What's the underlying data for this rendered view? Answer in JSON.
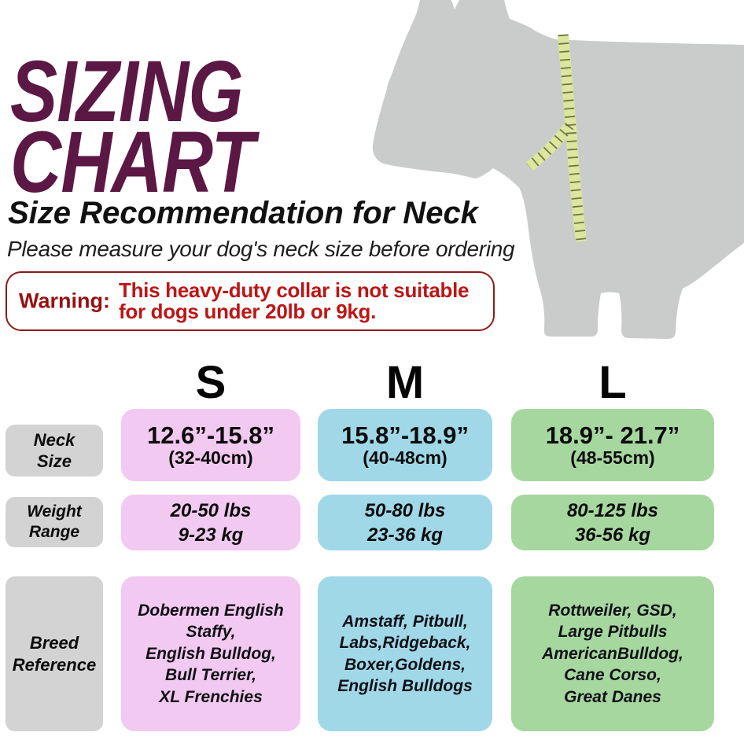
{
  "colors": {
    "title": "#5c1844",
    "text": "#141414",
    "warning-border": "#8f1a1a",
    "warning-label": "#951212",
    "warning-text": "#bc1616",
    "cell-pink": "#f2c9f0",
    "cell-blue": "#a0d8e8",
    "cell-green": "#a6d79f",
    "cell-gray": "#d3d3d3",
    "dog-gray": "#cacccb",
    "tape-yellow": "#dce69d",
    "tape-ticks": "#5d6335"
  },
  "title": {
    "line1": "SIZING",
    "line2": "CHART"
  },
  "subtitle": "Size Recommendation for Neck",
  "note": "Please measure your dog's neck size before ordering",
  "warning": {
    "label": "Warning:",
    "lines": [
      "This heavy-duty collar is not suitable",
      "for dogs under 20lb or 9kg."
    ]
  },
  "graphics": {
    "dog": "dog-silhouette",
    "tape": "measuring-tape"
  },
  "table": {
    "columns": [
      {
        "label": "S"
      },
      {
        "label": "M"
      },
      {
        "label": "L"
      }
    ],
    "rows": {
      "neck": {
        "label": [
          "Neck",
          "Size"
        ],
        "s": {
          "main": "12.6”-15.8”",
          "sub": "(32-40cm)"
        },
        "m": {
          "main": "15.8”-18.9”",
          "sub": "(40-48cm)"
        },
        "l": {
          "main": "18.9”- 21.7”",
          "sub": "(48-55cm)"
        }
      },
      "weight": {
        "label": [
          "Weight",
          "Range"
        ],
        "s": [
          "20-50 lbs",
          "9-23 kg"
        ],
        "m": [
          "50-80 lbs",
          "23-36 kg"
        ],
        "l": [
          "80-125 lbs",
          "36-56 kg"
        ]
      },
      "breed": {
        "label": [
          "Breed",
          "Reference"
        ],
        "s": [
          "Dobermen English",
          "Staffy,",
          "English Bulldog,",
          "Bull Terrier,",
          "XL Frenchies"
        ],
        "m": [
          "Amstaff, Pitbull,",
          "Labs,Ridgeback,",
          "Boxer,Goldens,",
          "English Bulldogs"
        ],
        "l": [
          "Rottweiler, GSD,",
          "Large Pitbulls",
          "AmericanBulldog,",
          "Cane Corso,",
          "Great Danes"
        ]
      }
    }
  },
  "chart_data": {
    "type": "table",
    "title": "SIZING CHART",
    "subtitle": "Size Recommendation for Neck",
    "note": "Please measure your dog's neck size before ordering",
    "warning": "Warning: This heavy-duty collar is not suitable for dogs under 20lb or 9kg.",
    "columns": [
      "Size",
      "Neck Size",
      "Weight Range",
      "Breed Reference"
    ],
    "rows": [
      [
        "S",
        "12.6\"-15.8\" (32-40cm)",
        "20-50 lbs / 9-23 kg",
        "Dobermen English Staffy, English Bulldog, Bull Terrier, XL Frenchies"
      ],
      [
        "M",
        "15.8\"-18.9\" (40-48cm)",
        "50-80 lbs / 23-36 kg",
        "Amstaff, Pitbull, Labs, Ridgeback, Boxer, Goldens, English Bulldogs"
      ],
      [
        "L",
        "18.9\"- 21.7\" (48-55cm)",
        "80-125 lbs / 36-56 kg",
        "Rottweiler, GSD, Large Pitbulls, AmericanBulldog, Cane Corso, Great Danes"
      ]
    ]
  }
}
